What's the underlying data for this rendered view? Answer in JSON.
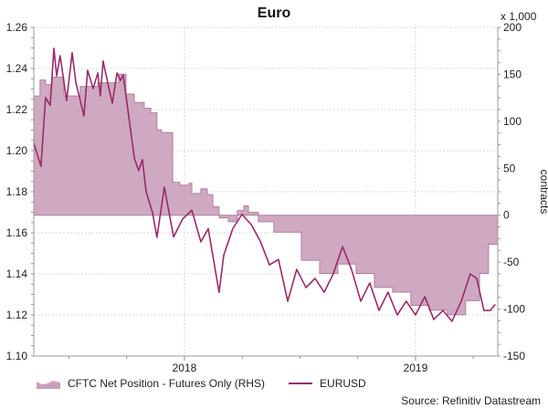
{
  "chart_data": {
    "type": "line",
    "title": "Euro",
    "left_axis": {
      "ticks": [
        "1.10",
        "1.12",
        "1.14",
        "1.16",
        "1.18",
        "1.20",
        "1.22",
        "1.24",
        "1.26"
      ],
      "range": [
        1.1,
        1.26
      ]
    },
    "right_axis": {
      "label": "contracts",
      "unit_note": "x 1,000",
      "ticks": [
        "-150",
        "-100",
        "-50",
        "0",
        "50",
        "100",
        "150",
        "200"
      ],
      "range": [
        -150,
        200
      ]
    },
    "x_axis": {
      "ticks": [
        "2018",
        "2019"
      ],
      "tick_values": [
        2018,
        2019
      ],
      "range": [
        2017.348,
        2019.356
      ]
    },
    "grid": true,
    "legend_placement": "bottom",
    "series": [
      {
        "name": "CFTC Net Position - Futures Only (RHS)",
        "kind": "area-step",
        "axis": "right",
        "color": "#c9a0ba",
        "x": [
          2017.348,
          2017.375,
          2017.399,
          2017.427,
          2017.478,
          2017.549,
          2017.625,
          2017.715,
          2017.747,
          2017.783,
          2017.826,
          2017.854,
          2017.881,
          2017.901,
          2017.949,
          2017.98,
          2018.02,
          2018.032,
          2018.071,
          2018.099,
          2018.123,
          2018.15,
          2018.19,
          2018.229,
          2018.257,
          2018.277,
          2018.32,
          2018.387,
          2018.506,
          2018.585,
          2018.664,
          2018.743,
          2018.822,
          2018.901,
          2018.98,
          2019.059,
          2019.138,
          2019.217,
          2019.277,
          2019.316,
          2019.356
        ],
        "values": [
          127,
          144,
          139,
          147,
          127,
          137,
          141,
          150,
          129,
          120,
          114,
          109,
          91,
          88,
          35,
          32,
          34,
          23,
          28,
          22,
          9,
          -3,
          -7,
          5,
          10,
          3,
          -7,
          -18,
          -48,
          -62,
          -52,
          -62,
          -77,
          -82,
          -96,
          -101,
          -106,
          -91,
          -62,
          -31,
          -35
        ]
      },
      {
        "name": "EURUSD",
        "kind": "line",
        "axis": "left",
        "color": "#9c2a6a",
        "x": [
          2017.348,
          2017.379,
          2017.399,
          2017.419,
          2017.435,
          2017.447,
          2017.462,
          2017.49,
          2017.514,
          2017.53,
          2017.565,
          2017.581,
          2017.605,
          2017.625,
          2017.636,
          2017.648,
          2017.676,
          2017.688,
          2017.708,
          2017.723,
          2017.735,
          2017.755,
          2017.783,
          2017.802,
          2017.818,
          2017.834,
          2017.862,
          2017.881,
          2017.913,
          2017.953,
          2017.992,
          2018.032,
          2018.071,
          2018.103,
          2018.15,
          2018.17,
          2018.209,
          2018.249,
          2018.289,
          2018.328,
          2018.368,
          2018.407,
          2018.447,
          2018.486,
          2018.526,
          2018.565,
          2018.605,
          2018.644,
          2018.684,
          2018.723,
          2018.763,
          2018.802,
          2018.842,
          2018.881,
          2018.921,
          2018.96,
          2019.0,
          2019.04,
          2019.079,
          2019.119,
          2019.158,
          2019.198,
          2019.237,
          2019.265,
          2019.296,
          2019.324,
          2019.344
        ],
        "values": [
          1.2036,
          1.1924,
          1.2258,
          1.222,
          1.2498,
          1.2364,
          1.2462,
          1.2244,
          1.2476,
          1.2333,
          1.2169,
          1.2391,
          1.2302,
          1.2378,
          1.2267,
          1.2436,
          1.2289,
          1.2231,
          1.2378,
          1.2342,
          1.2369,
          1.22,
          1.1964,
          1.1902,
          1.1956,
          1.18,
          1.1698,
          1.1578,
          1.1822,
          1.158,
          1.1667,
          1.171,
          1.1556,
          1.162,
          1.131,
          1.149,
          1.162,
          1.169,
          1.164,
          1.156,
          1.1444,
          1.147,
          1.1267,
          1.1422,
          1.1333,
          1.1378,
          1.1311,
          1.14,
          1.1533,
          1.1422,
          1.1267,
          1.1356,
          1.1222,
          1.1311,
          1.12,
          1.1267,
          1.12,
          1.1289,
          1.1178,
          1.1222,
          1.1169,
          1.1267,
          1.14,
          1.1378,
          1.1222,
          1.1222,
          1.125
        ]
      }
    ],
    "source": "Source: Refinitiv Datastream"
  }
}
